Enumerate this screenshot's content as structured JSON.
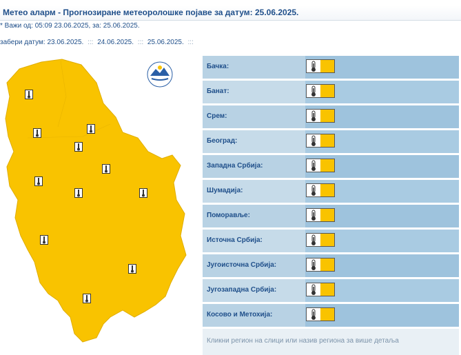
{
  "header": {
    "title": "Метео аларм - Прогнозиране метеоролошке појаве за датум:  25.06.2025.",
    "valid": "* Важи од: 05:09 23.06.2025, за: 25.06.2025."
  },
  "dates": {
    "label": "забери датум:",
    "items": [
      "23.06.2025.",
      "24.06.2025.",
      "25.06.2025."
    ],
    "separator": ":::"
  },
  "colors": {
    "warning_level": "#f9c300",
    "row_bg": "#b8d2e4",
    "text": "#1f4f8a"
  },
  "regions": [
    {
      "name": "Бачка:",
      "icon": "thermometer-icon"
    },
    {
      "name": "Банат:",
      "icon": "thermometer-icon"
    },
    {
      "name": "Срем:",
      "icon": "thermometer-icon"
    },
    {
      "name": "Београд:",
      "icon": "thermometer-icon"
    },
    {
      "name": "Западна Србија:",
      "icon": "thermometer-icon"
    },
    {
      "name": "Шумадија:",
      "icon": "thermometer-icon"
    },
    {
      "name": "Поморавље:",
      "icon": "thermometer-icon"
    },
    {
      "name": "Источна Србија:",
      "icon": "thermometer-icon"
    },
    {
      "name": "Југоисточна Србија:",
      "icon": "thermometer-icon"
    },
    {
      "name": "Југозападна Србија:",
      "icon": "thermometer-icon"
    },
    {
      "name": "Косово и Метохија:",
      "icon": "thermometer-icon"
    }
  ],
  "footer": {
    "hint": "Кликни регион на слици или назив региона за више детаља"
  }
}
